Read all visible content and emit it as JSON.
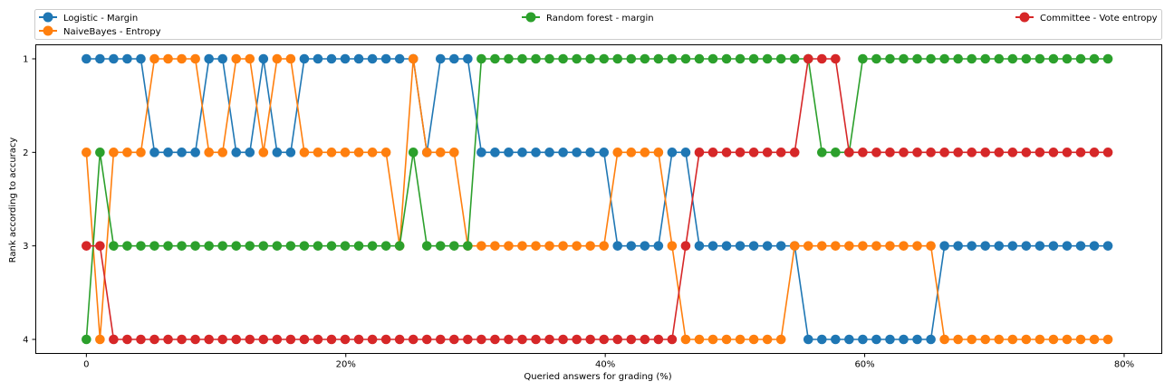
{
  "chart_data": {
    "type": "line",
    "xlabel": "Queried answers for grading (%)",
    "ylabel": "Rank according to accuracy",
    "x_ticks": [
      "0",
      "20%",
      "40%",
      "60%",
      "80%"
    ],
    "x_tick_values": [
      0,
      20,
      40,
      60,
      80
    ],
    "y_ticks": [
      "1",
      "2",
      "3",
      "4"
    ],
    "y_tick_values": [
      1,
      2,
      3,
      4
    ],
    "xlim": [
      -3.9,
      82.9
    ],
    "ylim": [
      4.15,
      0.85
    ],
    "y_inverted": true,
    "legend_position": "top",
    "x": [
      0,
      1.05,
      2.1,
      3.15,
      4.2,
      5.25,
      6.3,
      7.35,
      8.4,
      9.45,
      10.5,
      11.55,
      12.6,
      13.65,
      14.7,
      15.75,
      16.8,
      17.85,
      18.9,
      19.95,
      21,
      22.05,
      23.1,
      24.15,
      25.2,
      26.25,
      27.3,
      28.35,
      29.4,
      30.45,
      31.5,
      32.55,
      33.6,
      34.65,
      35.7,
      36.75,
      37.8,
      38.85,
      39.9,
      40.95,
      42,
      43.05,
      44.1,
      45.15,
      46.2,
      47.25,
      48.3,
      49.35,
      50.4,
      51.45,
      52.5,
      53.55,
      54.6,
      55.65,
      56.7,
      57.75,
      58.8,
      59.85,
      60.9,
      61.95,
      63,
      64.05,
      65.1,
      66.15,
      67.2,
      68.25,
      69.3,
      70.35,
      71.4,
      72.45,
      73.5,
      74.55,
      75.6,
      76.65,
      77.7,
      78.75
    ],
    "series": [
      {
        "name": "Logistic - Margin",
        "color": "#1f77b4",
        "values": [
          1,
          1,
          1,
          1,
          1,
          2,
          2,
          2,
          2,
          1,
          1,
          2,
          2,
          1,
          2,
          2,
          1,
          1,
          1,
          1,
          1,
          1,
          1,
          1,
          1,
          2,
          1,
          1,
          1,
          2,
          2,
          2,
          2,
          2,
          2,
          2,
          2,
          2,
          2,
          3,
          3,
          3,
          3,
          2,
          2,
          3,
          3,
          3,
          3,
          3,
          3,
          3,
          3,
          4,
          4,
          4,
          4,
          4,
          4,
          4,
          4,
          4,
          4,
          3,
          3,
          3,
          3,
          3,
          3,
          3,
          3,
          3,
          3,
          3,
          3,
          3
        ]
      },
      {
        "name": "NaiveBayes - Entropy",
        "color": "#ff7f0e",
        "values": [
          2,
          4,
          2,
          2,
          2,
          1,
          1,
          1,
          1,
          2,
          2,
          1,
          1,
          2,
          1,
          1,
          2,
          2,
          2,
          2,
          2,
          2,
          2,
          3,
          1,
          2,
          2,
          2,
          3,
          3,
          3,
          3,
          3,
          3,
          3,
          3,
          3,
          3,
          3,
          2,
          2,
          2,
          2,
          3,
          4,
          4,
          4,
          4,
          4,
          4,
          4,
          4,
          3,
          3,
          3,
          3,
          3,
          3,
          3,
          3,
          3,
          3,
          3,
          4,
          4,
          4,
          4,
          4,
          4,
          4,
          4,
          4,
          4,
          4,
          4,
          4
        ]
      },
      {
        "name": "Random forest - margin",
        "color": "#2ca02c",
        "values": [
          4,
          2,
          3,
          3,
          3,
          3,
          3,
          3,
          3,
          3,
          3,
          3,
          3,
          3,
          3,
          3,
          3,
          3,
          3,
          3,
          3,
          3,
          3,
          3,
          2,
          3,
          3,
          3,
          3,
          1,
          1,
          1,
          1,
          1,
          1,
          1,
          1,
          1,
          1,
          1,
          1,
          1,
          1,
          1,
          1,
          1,
          1,
          1,
          1,
          1,
          1,
          1,
          1,
          1,
          2,
          2,
          2,
          1,
          1,
          1,
          1,
          1,
          1,
          1,
          1,
          1,
          1,
          1,
          1,
          1,
          1,
          1,
          1,
          1,
          1,
          1
        ]
      },
      {
        "name": "Committee - Vote entropy",
        "color": "#d62728",
        "values": [
          3,
          3,
          4,
          4,
          4,
          4,
          4,
          4,
          4,
          4,
          4,
          4,
          4,
          4,
          4,
          4,
          4,
          4,
          4,
          4,
          4,
          4,
          4,
          4,
          4,
          4,
          4,
          4,
          4,
          4,
          4,
          4,
          4,
          4,
          4,
          4,
          4,
          4,
          4,
          4,
          4,
          4,
          4,
          4,
          3,
          2,
          2,
          2,
          2,
          2,
          2,
          2,
          2,
          1,
          1,
          1,
          2,
          2,
          2,
          2,
          2,
          2,
          2,
          2,
          2,
          2,
          2,
          2,
          2,
          2,
          2,
          2,
          2,
          2,
          2,
          2
        ]
      }
    ]
  }
}
